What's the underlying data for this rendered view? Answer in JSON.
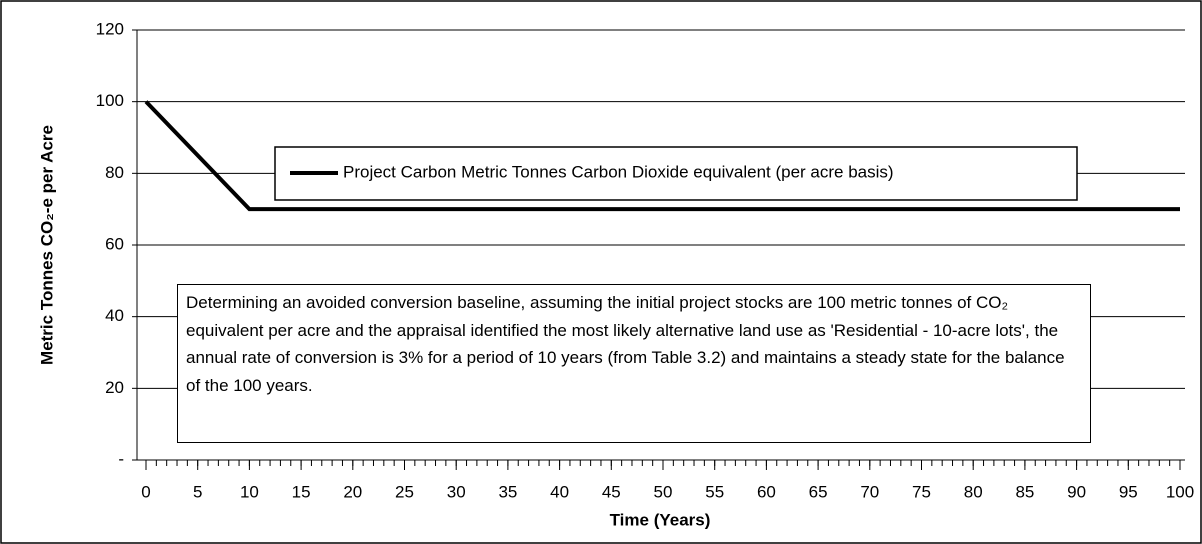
{
  "chart_data": {
    "type": "line",
    "xlabel": "Time (Years)",
    "ylabel": "Metric Tonnes CO₂-e per Acre",
    "annotation": "Determining an avoided conversion baseline, assuming the initial project stocks are 100 metric tonnes of CO₂ equivalent per acre and the appraisal identified the most likely alternative land use as 'Residential - 10-acre lots', the annual rate of conversion is 3% for a period of 10 years (from Table 3.2) and maintains a steady state for the balance of the 100 years.",
    "x": [
      0,
      1,
      2,
      3,
      4,
      5,
      6,
      7,
      8,
      9,
      10,
      11,
      12,
      13,
      14,
      15,
      16,
      17,
      18,
      19,
      20,
      21,
      22,
      23,
      24,
      25,
      26,
      27,
      28,
      29,
      30,
      31,
      32,
      33,
      34,
      35,
      36,
      37,
      38,
      39,
      40,
      41,
      42,
      43,
      44,
      45,
      46,
      47,
      48,
      49,
      50,
      51,
      52,
      53,
      54,
      55,
      56,
      57,
      58,
      59,
      60,
      61,
      62,
      63,
      64,
      65,
      66,
      67,
      68,
      69,
      70,
      71,
      72,
      73,
      74,
      75,
      76,
      77,
      78,
      79,
      80,
      81,
      82,
      83,
      84,
      85,
      86,
      87,
      88,
      89,
      90,
      91,
      92,
      93,
      94,
      95,
      96,
      97,
      98,
      99,
      100
    ],
    "series": [
      {
        "name": "Project Carbon Metric Tonnes Carbon Dioxide equivalent (per acre basis)",
        "color": "#000000",
        "values": [
          100,
          97,
          94,
          91,
          88,
          85,
          82,
          79,
          76,
          73,
          70,
          70,
          70,
          70,
          70,
          70,
          70,
          70,
          70,
          70,
          70,
          70,
          70,
          70,
          70,
          70,
          70,
          70,
          70,
          70,
          70,
          70,
          70,
          70,
          70,
          70,
          70,
          70,
          70,
          70,
          70,
          70,
          70,
          70,
          70,
          70,
          70,
          70,
          70,
          70,
          70,
          70,
          70,
          70,
          70,
          70,
          70,
          70,
          70,
          70,
          70,
          70,
          70,
          70,
          70,
          70,
          70,
          70,
          70,
          70,
          70,
          70,
          70,
          70,
          70,
          70,
          70,
          70,
          70,
          70,
          70,
          70,
          70,
          70,
          70,
          70,
          70,
          70,
          70,
          70,
          70,
          70,
          70,
          70,
          70,
          70,
          70,
          70,
          70,
          70,
          70
        ]
      }
    ],
    "xlim": [
      0,
      100
    ],
    "xticks": [
      0,
      5,
      10,
      15,
      20,
      25,
      30,
      35,
      40,
      45,
      50,
      55,
      60,
      65,
      70,
      75,
      80,
      85,
      90,
      95,
      100
    ],
    "xminorticks": [
      0,
      1,
      2,
      3,
      4,
      5,
      6,
      7,
      8,
      9,
      10,
      11,
      12,
      13,
      14,
      15,
      16,
      17,
      18,
      19,
      20,
      21,
      22,
      23,
      24,
      25,
      26,
      27,
      28,
      29,
      30,
      31,
      32,
      33,
      34,
      35,
      36,
      37,
      38,
      39,
      40,
      41,
      42,
      43,
      44,
      45,
      46,
      47,
      48,
      49,
      50,
      51,
      52,
      53,
      54,
      55,
      56,
      57,
      58,
      59,
      60,
      61,
      62,
      63,
      64,
      65,
      66,
      67,
      68,
      69,
      70,
      71,
      72,
      73,
      74,
      75,
      76,
      77,
      78,
      79,
      80,
      81,
      82,
      83,
      84,
      85,
      86,
      87,
      88,
      89,
      90,
      91,
      92,
      93,
      94,
      95,
      96,
      97,
      98,
      99,
      100
    ],
    "ylim": [
      0,
      120
    ],
    "yticks": [
      {
        "value": 0,
        "label": "-"
      },
      20,
      40,
      60,
      80,
      100,
      120
    ],
    "grid": true
  }
}
